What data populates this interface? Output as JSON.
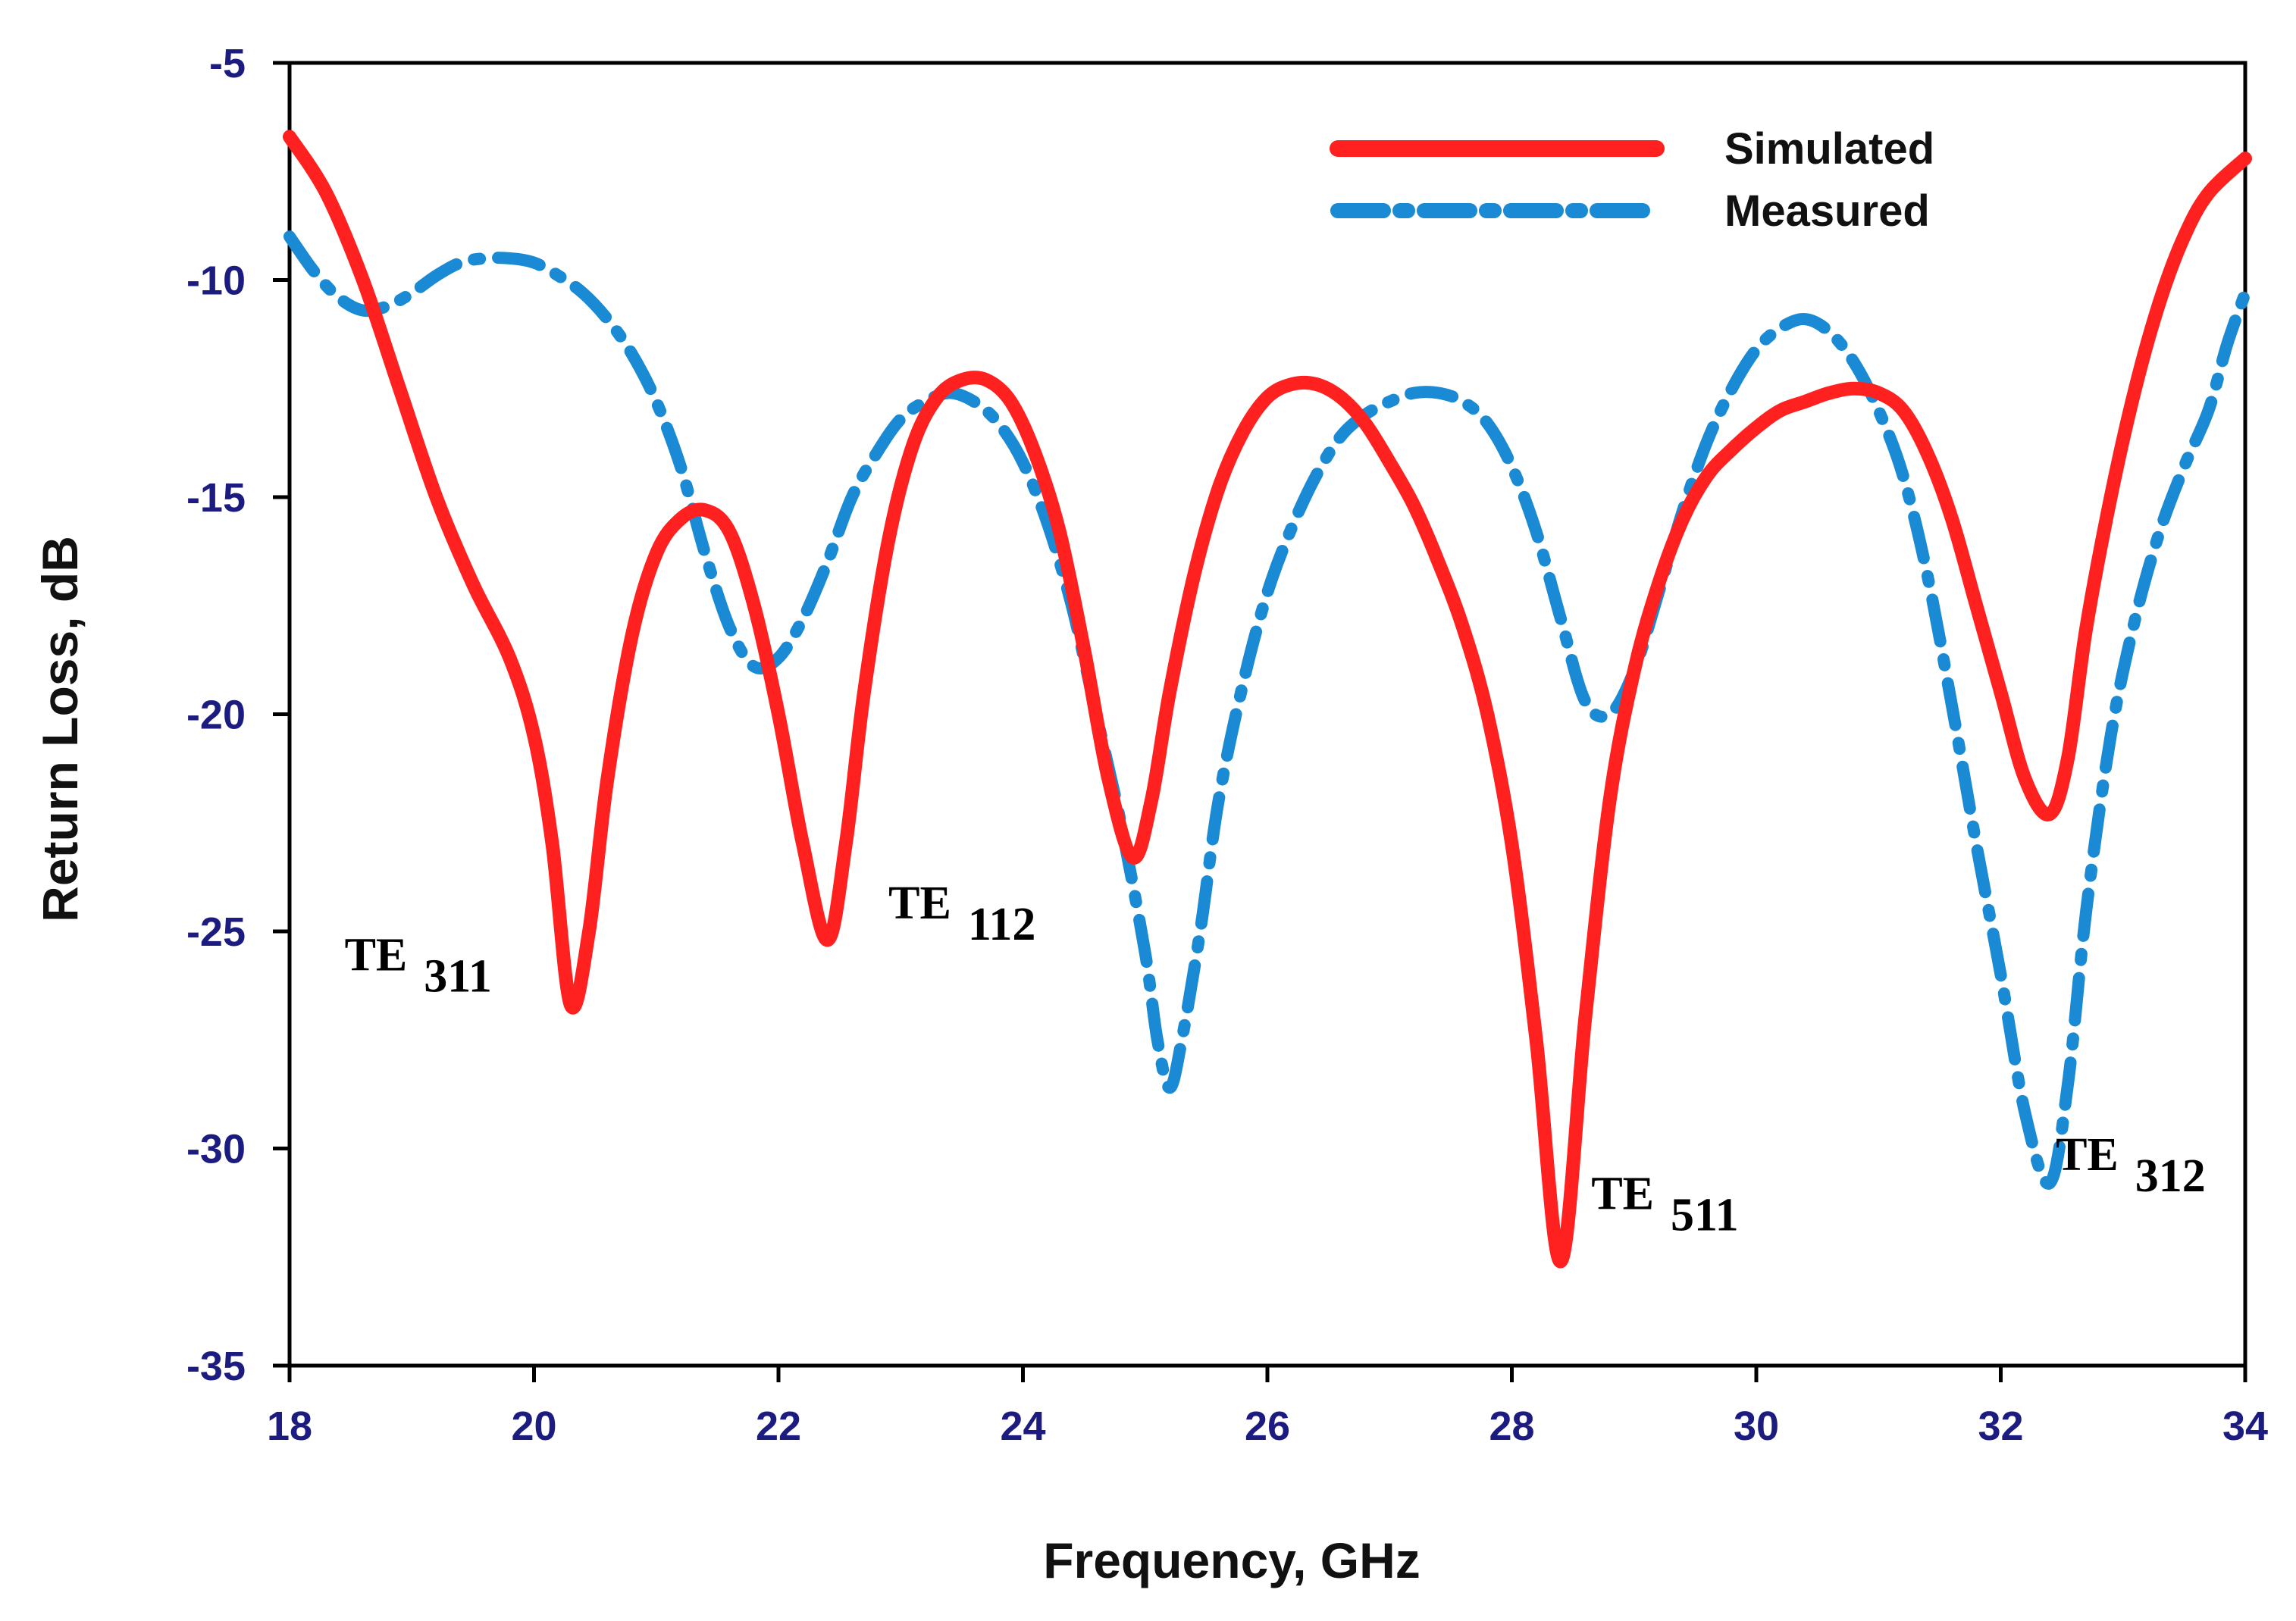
{
  "chart_data": {
    "type": "line",
    "title": "",
    "xlabel": "Frequency, GHz",
    "ylabel": "Return Loss, dB",
    "xlim": [
      18,
      34
    ],
    "ylim": [
      -35,
      -5
    ],
    "xticks": [
      "18",
      "20",
      "22",
      "24",
      "26",
      "28",
      "30",
      "32",
      "34"
    ],
    "yticks": [
      "-5",
      "-10",
      "-15",
      "-20",
      "-25",
      "-30",
      "-35"
    ],
    "grid": false,
    "legend_position": "top-right",
    "series": [
      {
        "name": "Simulated",
        "color": "#ff2020",
        "style": "solid",
        "points": [
          [
            18.0,
            -6.7
          ],
          [
            18.3,
            -8.0
          ],
          [
            18.6,
            -10.0
          ],
          [
            18.9,
            -12.5
          ],
          [
            19.2,
            -15.0
          ],
          [
            19.5,
            -17.0
          ],
          [
            19.8,
            -18.7
          ],
          [
            20.0,
            -20.5
          ],
          [
            20.15,
            -23.0
          ],
          [
            20.3,
            -26.7
          ],
          [
            20.45,
            -25.0
          ],
          [
            20.6,
            -21.5
          ],
          [
            20.8,
            -18.2
          ],
          [
            21.0,
            -16.3
          ],
          [
            21.2,
            -15.5
          ],
          [
            21.4,
            -15.3
          ],
          [
            21.6,
            -15.8
          ],
          [
            21.8,
            -17.5
          ],
          [
            22.0,
            -20.0
          ],
          [
            22.2,
            -23.0
          ],
          [
            22.4,
            -25.2
          ],
          [
            22.55,
            -23.0
          ],
          [
            22.7,
            -19.5
          ],
          [
            22.9,
            -16.0
          ],
          [
            23.1,
            -13.8
          ],
          [
            23.3,
            -12.7
          ],
          [
            23.5,
            -12.3
          ],
          [
            23.7,
            -12.3
          ],
          [
            23.9,
            -12.8
          ],
          [
            24.1,
            -14.0
          ],
          [
            24.3,
            -15.8
          ],
          [
            24.5,
            -18.5
          ],
          [
            24.7,
            -21.5
          ],
          [
            24.9,
            -23.3
          ],
          [
            25.05,
            -22.0
          ],
          [
            25.2,
            -19.5
          ],
          [
            25.4,
            -16.8
          ],
          [
            25.6,
            -14.8
          ],
          [
            25.8,
            -13.5
          ],
          [
            26.0,
            -12.7
          ],
          [
            26.2,
            -12.4
          ],
          [
            26.4,
            -12.4
          ],
          [
            26.6,
            -12.7
          ],
          [
            26.8,
            -13.3
          ],
          [
            27.0,
            -14.2
          ],
          [
            27.2,
            -15.2
          ],
          [
            27.4,
            -16.5
          ],
          [
            27.6,
            -18.0
          ],
          [
            27.8,
            -20.0
          ],
          [
            28.0,
            -23.0
          ],
          [
            28.2,
            -27.5
          ],
          [
            28.4,
            -32.6
          ],
          [
            28.6,
            -27.0
          ],
          [
            28.8,
            -22.0
          ],
          [
            29.0,
            -19.0
          ],
          [
            29.2,
            -17.0
          ],
          [
            29.4,
            -15.5
          ],
          [
            29.6,
            -14.5
          ],
          [
            29.8,
            -13.9
          ],
          [
            30.0,
            -13.4
          ],
          [
            30.2,
            -13.0
          ],
          [
            30.4,
            -12.8
          ],
          [
            30.6,
            -12.6
          ],
          [
            30.8,
            -12.5
          ],
          [
            31.0,
            -12.6
          ],
          [
            31.2,
            -13.0
          ],
          [
            31.4,
            -14.0
          ],
          [
            31.6,
            -15.5
          ],
          [
            31.8,
            -17.5
          ],
          [
            32.0,
            -19.5
          ],
          [
            32.2,
            -21.5
          ],
          [
            32.4,
            -22.3
          ],
          [
            32.55,
            -21.0
          ],
          [
            32.7,
            -18.0
          ],
          [
            32.9,
            -15.0
          ],
          [
            33.1,
            -12.5
          ],
          [
            33.3,
            -10.5
          ],
          [
            33.5,
            -9.0
          ],
          [
            33.7,
            -8.0
          ],
          [
            34.0,
            -7.2
          ]
        ]
      },
      {
        "name": "Measured",
        "color": "#1a8ad4",
        "style": "dash-dot",
        "points": [
          [
            18.0,
            -9.0
          ],
          [
            18.2,
            -9.8
          ],
          [
            18.4,
            -10.4
          ],
          [
            18.6,
            -10.7
          ],
          [
            18.8,
            -10.6
          ],
          [
            19.0,
            -10.3
          ],
          [
            19.2,
            -9.9
          ],
          [
            19.4,
            -9.6
          ],
          [
            19.6,
            -9.5
          ],
          [
            19.8,
            -9.5
          ],
          [
            20.0,
            -9.6
          ],
          [
            20.2,
            -9.9
          ],
          [
            20.4,
            -10.3
          ],
          [
            20.6,
            -10.9
          ],
          [
            20.8,
            -11.7
          ],
          [
            21.0,
            -12.8
          ],
          [
            21.2,
            -14.3
          ],
          [
            21.4,
            -16.3
          ],
          [
            21.6,
            -18.0
          ],
          [
            21.8,
            -18.9
          ],
          [
            22.0,
            -18.7
          ],
          [
            22.2,
            -17.8
          ],
          [
            22.4,
            -16.5
          ],
          [
            22.6,
            -15.0
          ],
          [
            22.8,
            -14.0
          ],
          [
            23.0,
            -13.2
          ],
          [
            23.2,
            -12.8
          ],
          [
            23.4,
            -12.6
          ],
          [
            23.6,
            -12.8
          ],
          [
            23.8,
            -13.3
          ],
          [
            24.0,
            -14.2
          ],
          [
            24.2,
            -15.6
          ],
          [
            24.4,
            -17.5
          ],
          [
            24.6,
            -20.0
          ],
          [
            24.8,
            -22.5
          ],
          [
            25.0,
            -25.5
          ],
          [
            25.1,
            -27.5
          ],
          [
            25.2,
            -28.6
          ],
          [
            25.3,
            -27.5
          ],
          [
            25.45,
            -25.0
          ],
          [
            25.6,
            -22.0
          ],
          [
            25.8,
            -19.3
          ],
          [
            26.0,
            -17.2
          ],
          [
            26.2,
            -15.7
          ],
          [
            26.4,
            -14.5
          ],
          [
            26.6,
            -13.6
          ],
          [
            26.8,
            -13.1
          ],
          [
            27.0,
            -12.8
          ],
          [
            27.2,
            -12.6
          ],
          [
            27.4,
            -12.6
          ],
          [
            27.6,
            -12.8
          ],
          [
            27.8,
            -13.3
          ],
          [
            28.0,
            -14.3
          ],
          [
            28.2,
            -15.8
          ],
          [
            28.4,
            -17.8
          ],
          [
            28.6,
            -19.7
          ],
          [
            28.8,
            -20.0
          ],
          [
            29.0,
            -19.0
          ],
          [
            29.2,
            -17.2
          ],
          [
            29.4,
            -15.3
          ],
          [
            29.6,
            -13.7
          ],
          [
            29.8,
            -12.5
          ],
          [
            30.0,
            -11.6
          ],
          [
            30.2,
            -11.1
          ],
          [
            30.4,
            -10.9
          ],
          [
            30.6,
            -11.2
          ],
          [
            30.8,
            -11.9
          ],
          [
            31.0,
            -13.0
          ],
          [
            31.2,
            -14.5
          ],
          [
            31.4,
            -16.8
          ],
          [
            31.6,
            -19.8
          ],
          [
            31.8,
            -23.0
          ],
          [
            32.0,
            -26.0
          ],
          [
            32.2,
            -29.2
          ],
          [
            32.4,
            -30.8
          ],
          [
            32.55,
            -28.5
          ],
          [
            32.7,
            -24.5
          ],
          [
            32.9,
            -20.5
          ],
          [
            33.1,
            -17.8
          ],
          [
            33.3,
            -15.8
          ],
          [
            33.5,
            -14.3
          ],
          [
            33.7,
            -13.0
          ],
          [
            33.85,
            -11.5
          ],
          [
            34.0,
            -10.3
          ]
        ]
      }
    ],
    "annotations": [
      {
        "main": "TE",
        "sub": "311",
        "x": 18.45,
        "y": -25.9
      },
      {
        "main": "TE",
        "sub": "112",
        "x": 22.9,
        "y": -24.7
      },
      {
        "main": "TE",
        "sub": "511",
        "x": 28.65,
        "y": -31.4
      },
      {
        "main": "TE",
        "sub": "312",
        "x": 32.45,
        "y": -30.5
      }
    ]
  }
}
